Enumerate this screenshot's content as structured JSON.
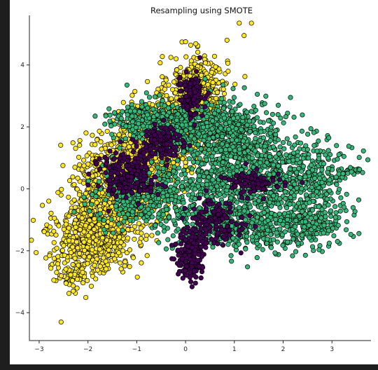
{
  "chart_data": {
    "type": "scatter",
    "title": "Resampling using SMOTE",
    "xlabel": "",
    "ylabel": "",
    "xlim": [
      -3.2,
      3.8
    ],
    "ylim": [
      -4.9,
      5.6
    ],
    "xticks": [
      -3,
      -2,
      -1,
      0,
      1,
      2,
      3
    ],
    "yticks": [
      -4,
      -2,
      0,
      2,
      4
    ],
    "grid": false,
    "legend": "none",
    "spines": [
      "left",
      "bottom"
    ],
    "marker_edge_color": "#000000",
    "series": [
      {
        "color": "#fde725",
        "density_regions": [
          {
            "cx": 0.25,
            "cy": 3.2,
            "sx": 0.3,
            "sy": 0.55,
            "n": 450
          },
          {
            "cx": -0.5,
            "cy": 1.8,
            "sx": 0.42,
            "sy": 0.55,
            "n": 600
          },
          {
            "cx": -1.2,
            "cy": 0.3,
            "sx": 0.5,
            "sy": 0.7,
            "n": 850
          },
          {
            "cx": -1.85,
            "cy": -1.4,
            "sx": 0.4,
            "sy": 0.65,
            "n": 700
          },
          {
            "cx": -2.35,
            "cy": -2.7,
            "sx": 0.2,
            "sy": 0.3,
            "n": 60
          }
        ],
        "points": [
          [
            1.1,
            5.35
          ],
          [
            1.35,
            5.35
          ],
          [
            1.2,
            4.95
          ],
          [
            0.85,
            4.8
          ],
          [
            0.0,
            4.75
          ],
          [
            -2.55,
            -4.3
          ],
          [
            -2.7,
            -2.95
          ],
          [
            -2.3,
            -3.3
          ],
          [
            -2.45,
            -3.05
          ]
        ]
      },
      {
        "color": "#35b779",
        "density_regions": [
          {
            "cx": -0.6,
            "cy": 2.2,
            "sx": 0.45,
            "sy": 0.3,
            "n": 320
          },
          {
            "cx": 0.3,
            "cy": 1.9,
            "sx": 0.55,
            "sy": 0.35,
            "n": 360
          },
          {
            "cx": 1.1,
            "cy": 1.7,
            "sx": 0.45,
            "sy": 0.6,
            "n": 320
          },
          {
            "cx": -0.8,
            "cy": -0.2,
            "sx": 0.55,
            "sy": 0.45,
            "n": 320
          },
          {
            "cx": 1.0,
            "cy": 0.2,
            "sx": 0.7,
            "sy": 0.8,
            "n": 650
          },
          {
            "cx": 2.3,
            "cy": 0.3,
            "sx": 0.55,
            "sy": 0.7,
            "n": 420
          },
          {
            "cx": 1.2,
            "cy": -1.3,
            "sx": 0.8,
            "sy": 0.35,
            "n": 380
          },
          {
            "cx": 2.7,
            "cy": -1.1,
            "sx": 0.3,
            "sy": 0.4,
            "n": 120
          },
          {
            "cx": 3.3,
            "cy": 0.55,
            "sx": 0.15,
            "sy": 0.08,
            "n": 20
          }
        ],
        "points": [
          [
            -1.2,
            3.35
          ],
          [
            -0.8,
            3.1
          ],
          [
            2.15,
            2.95
          ],
          [
            1.9,
            2.7
          ],
          [
            3.4,
            0.55
          ],
          [
            0.4,
            3.55
          ]
        ]
      },
      {
        "color": "#440154",
        "density_regions": [
          {
            "cx": 0.1,
            "cy": 3.0,
            "sx": 0.13,
            "sy": 0.35,
            "n": 110
          },
          {
            "cx": -1.2,
            "cy": 0.4,
            "sx": 0.3,
            "sy": 0.35,
            "n": 220
          },
          {
            "cx": -0.5,
            "cy": 1.5,
            "sx": 0.2,
            "sy": 0.3,
            "n": 120
          },
          {
            "cx": 0.6,
            "cy": -1.1,
            "sx": 0.3,
            "sy": 0.35,
            "n": 140
          },
          {
            "cx": 0.1,
            "cy": -2.2,
            "sx": 0.15,
            "sy": 0.38,
            "n": 170
          },
          {
            "cx": 1.3,
            "cy": 0.2,
            "sx": 0.3,
            "sy": 0.2,
            "n": 90
          }
        ],
        "points": [
          [
            -0.15,
            -2.75
          ],
          [
            0.0,
            -2.65
          ]
        ]
      }
    ]
  }
}
